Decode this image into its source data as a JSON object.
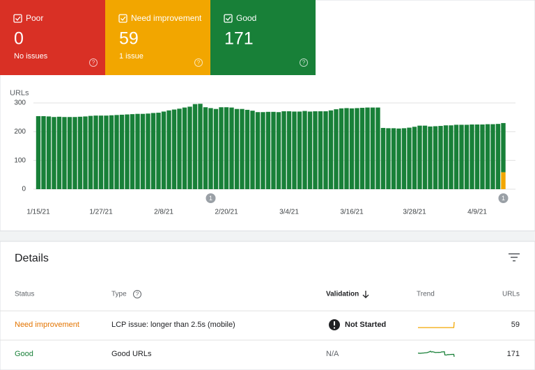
{
  "chart_data": {
    "type": "stacked_bar",
    "y_label": "URLs",
    "categories": [
      "1/15/21",
      null,
      null,
      null,
      null,
      null,
      null,
      null,
      null,
      null,
      null,
      null,
      "1/27/21",
      null,
      null,
      null,
      null,
      null,
      null,
      null,
      null,
      null,
      null,
      null,
      "2/8/21",
      null,
      null,
      null,
      null,
      null,
      null,
      null,
      null,
      null,
      null,
      null,
      "2/20/21",
      null,
      null,
      null,
      null,
      null,
      null,
      null,
      null,
      null,
      null,
      null,
      "3/4/21",
      null,
      null,
      null,
      null,
      null,
      null,
      null,
      null,
      null,
      null,
      null,
      "3/16/21",
      null,
      null,
      null,
      null,
      null,
      null,
      null,
      null,
      null,
      null,
      null,
      "3/28/21",
      null,
      null,
      null,
      null,
      null,
      null,
      null,
      null,
      null,
      null,
      null,
      "4/9/21",
      null,
      null,
      null,
      null,
      null
    ],
    "annotations": [
      null,
      null,
      null,
      null,
      null,
      null,
      null,
      null,
      null,
      null,
      null,
      null,
      null,
      null,
      null,
      null,
      null,
      null,
      null,
      null,
      null,
      null,
      null,
      null,
      null,
      null,
      null,
      null,
      null,
      null,
      null,
      null,
      null,
      "1",
      null,
      null,
      null,
      null,
      null,
      null,
      null,
      null,
      null,
      null,
      null,
      null,
      null,
      null,
      null,
      null,
      null,
      null,
      null,
      null,
      null,
      null,
      null,
      null,
      null,
      null,
      null,
      null,
      null,
      null,
      null,
      null,
      null,
      null,
      null,
      null,
      null,
      null,
      null,
      null,
      null,
      null,
      null,
      null,
      null,
      null,
      null,
      null,
      null,
      null,
      null,
      null,
      null,
      null,
      null,
      "1"
    ],
    "series": [
      {
        "name": "Poor",
        "color": "#d93025",
        "values": [
          0,
          0,
          0,
          0,
          0,
          0,
          0,
          0,
          0,
          0,
          0,
          0,
          0,
          0,
          0,
          0,
          0,
          0,
          0,
          0,
          0,
          0,
          0,
          0,
          0,
          0,
          0,
          0,
          0,
          0,
          0,
          0,
          0,
          0,
          0,
          0,
          0,
          0,
          0,
          0,
          0,
          0,
          0,
          0,
          0,
          0,
          0,
          0,
          0,
          0,
          0,
          0,
          0,
          0,
          0,
          0,
          0,
          0,
          0,
          0,
          0,
          0,
          0,
          0,
          0,
          0,
          0,
          0,
          0,
          0,
          0,
          0,
          0,
          0,
          0,
          0,
          0,
          0,
          0,
          0,
          0,
          0,
          0,
          0,
          0,
          0,
          0,
          0,
          0,
          0
        ]
      },
      {
        "name": "Need improvement",
        "color": "#f2a600",
        "values": [
          0,
          0,
          0,
          0,
          0,
          0,
          0,
          0,
          0,
          0,
          0,
          0,
          0,
          0,
          0,
          0,
          0,
          0,
          0,
          0,
          0,
          0,
          0,
          0,
          0,
          0,
          0,
          0,
          0,
          0,
          0,
          0,
          0,
          0,
          0,
          0,
          0,
          0,
          0,
          0,
          0,
          0,
          0,
          0,
          0,
          0,
          0,
          0,
          0,
          0,
          0,
          0,
          0,
          0,
          0,
          0,
          0,
          0,
          0,
          0,
          0,
          0,
          0,
          0,
          0,
          0,
          0,
          0,
          0,
          0,
          0,
          0,
          0,
          0,
          0,
          0,
          0,
          0,
          0,
          0,
          0,
          0,
          0,
          0,
          0,
          0,
          0,
          0,
          0,
          59
        ]
      },
      {
        "name": "Good",
        "color": "#188038",
        "values": [
          254,
          254,
          253,
          251,
          252,
          251,
          251,
          251,
          252,
          253,
          255,
          256,
          256,
          256,
          257,
          258,
          259,
          260,
          261,
          262,
          262,
          263,
          265,
          266,
          270,
          274,
          277,
          280,
          284,
          287,
          296,
          297,
          285,
          282,
          279,
          285,
          285,
          284,
          279,
          279,
          276,
          273,
          268,
          268,
          269,
          269,
          268,
          271,
          271,
          270,
          270,
          272,
          270,
          271,
          271,
          271,
          274,
          278,
          281,
          282,
          281,
          282,
          283,
          284,
          284,
          284,
          213,
          212,
          212,
          211,
          212,
          214,
          217,
          221,
          221,
          218,
          219,
          220,
          222,
          222,
          224,
          224,
          224,
          225,
          225,
          225,
          226,
          226,
          227,
          171
        ]
      }
    ],
    "ylim": [
      0,
      300
    ],
    "yticks": [
      0,
      100,
      200,
      300
    ],
    "grid": true
  },
  "cards": [
    {
      "count": 0,
      "summary": "No issues"
    },
    {
      "count": 59,
      "summary": "1 issue"
    },
    {
      "count": 171,
      "summary": null
    }
  ],
  "details": {
    "title": "Details",
    "columns": [
      "Status",
      "Type",
      "Validation",
      "Trend",
      "URLs"
    ],
    "rows": [
      {
        "status": "Need improvement",
        "status_color": "#e37400",
        "type": "LCP issue: longer than 2.5s (mobile)",
        "validation": "Not Started",
        "urls": 59
      },
      {
        "status": "Good",
        "status_color": "#188038",
        "type": "Good URLs",
        "validation": "N/A",
        "urls": 171
      }
    ]
  }
}
